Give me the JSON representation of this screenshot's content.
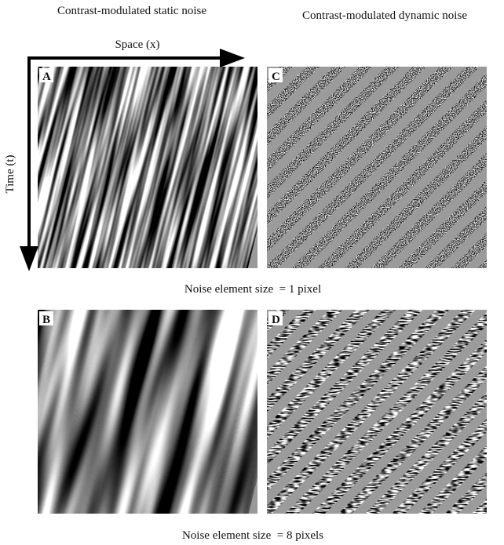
{
  "column_titles": [
    "Contrast-modulated static noise",
    "Contrast-modulated dynamic noise"
  ],
  "axes": {
    "x": "Space (x)",
    "y": "Time (t)"
  },
  "panels": [
    {
      "label": "A"
    },
    {
      "label": "C"
    },
    {
      "label": "B"
    },
    {
      "label": "D"
    }
  ],
  "captions": [
    "Noise element size  = 1 pixel",
    "Noise element size  = 8 pixels"
  ]
}
